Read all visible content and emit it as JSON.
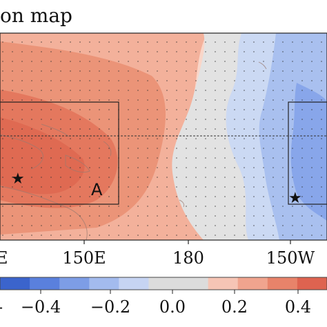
{
  "title": "on map",
  "x_ticks": [
    "E",
    "150E",
    "180",
    "150W"
  ],
  "colorbar": {
    "tick_labels": [
      "−0.4",
      "−0.2",
      "0.0",
      "0.2",
      "0.4"
    ],
    "colors": [
      "#3b64cc",
      "#5a80dd",
      "#7d9de6",
      "#a3bbee",
      "#c6d4f3",
      "#dcdcdc",
      "#dcdcdc",
      "#f6c5b5",
      "#f0a48e",
      "#e8836a",
      "#de6350"
    ]
  },
  "boxes": [
    {
      "label": "A"
    },
    {
      "label": ""
    }
  ],
  "markers": [
    "star",
    "star"
  ],
  "colors": {
    "warm_deep": "#e0735a",
    "warm": "#f0a48e",
    "warm_light": "#f8d2c4",
    "neutral": "#e3e3e3",
    "cool_light": "#c9d7f2",
    "cool": "#9db7ec",
    "cool_deep": "#7d9de6"
  }
}
